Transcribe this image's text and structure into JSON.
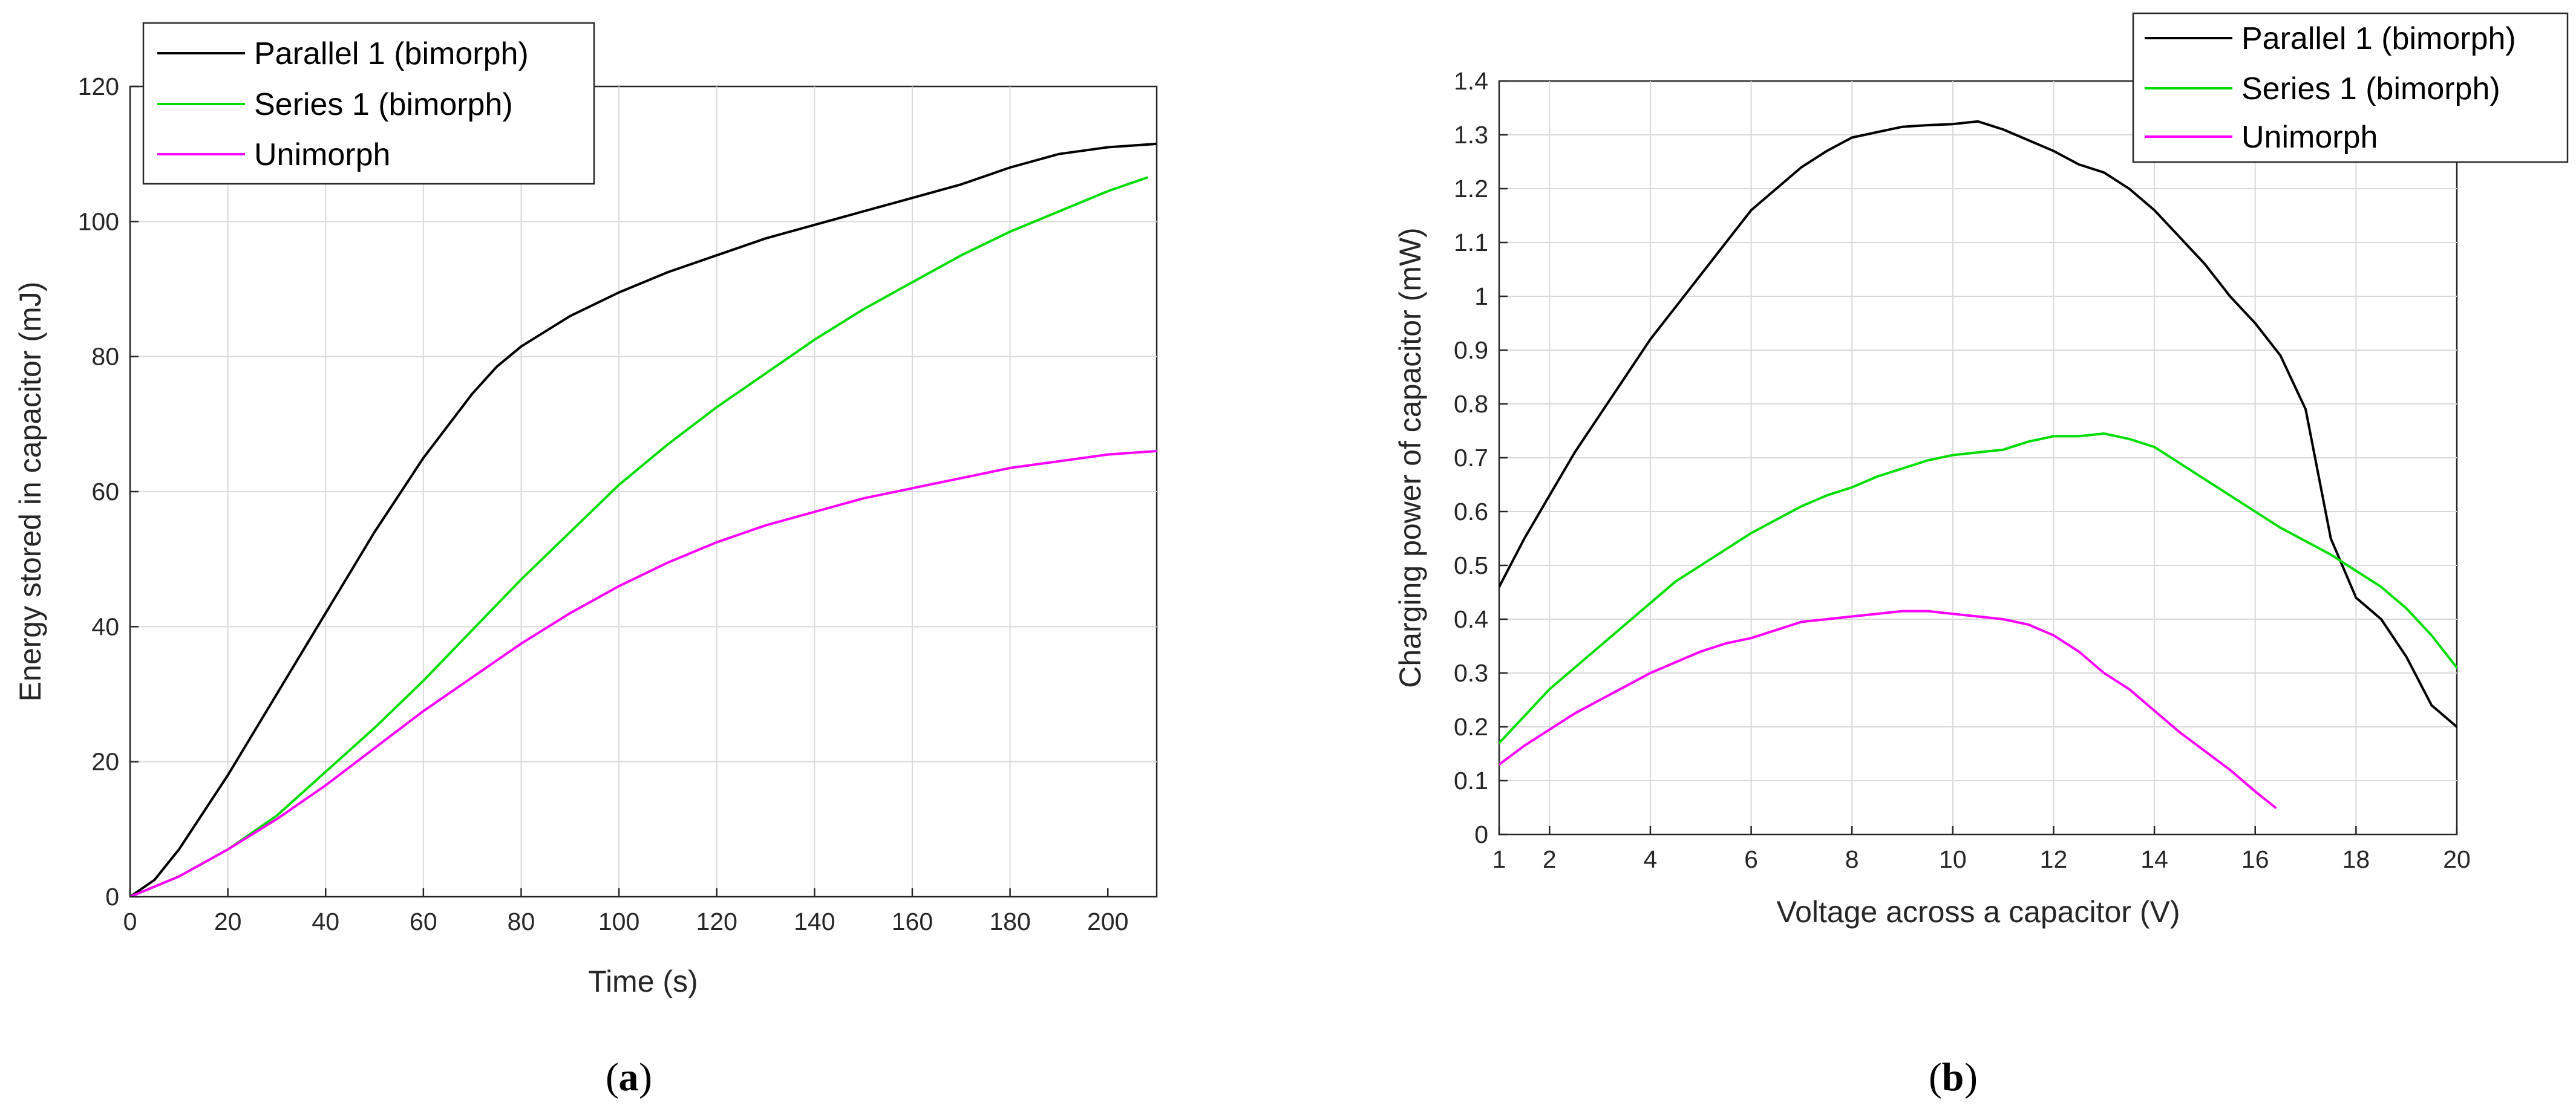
{
  "chart_data": [
    {
      "type": "line",
      "panel_label": "a",
      "xlabel": "Time (s)",
      "ylabel": "Energy stored in capacitor (mJ)",
      "xlim": [
        0,
        210
      ],
      "ylim": [
        0,
        120
      ],
      "xticks": [
        "0",
        "20",
        "40",
        "60",
        "80",
        "100",
        "120",
        "140",
        "160",
        "180",
        "200"
      ],
      "yticks": [
        "0",
        "20",
        "40",
        "60",
        "80",
        "100",
        "120"
      ],
      "grid": true,
      "legend_position": "top-left",
      "series": [
        {
          "name": "Parallel 1 (bimorph)",
          "color": "#000000",
          "x": [
            0,
            5,
            10,
            20,
            30,
            40,
            50,
            60,
            70,
            75,
            80,
            90,
            100,
            110,
            120,
            130,
            140,
            150,
            160,
            170,
            180,
            190,
            200,
            210
          ],
          "y": [
            0,
            2.5,
            7,
            18,
            30,
            42,
            54,
            65,
            74.5,
            78.5,
            81.5,
            86,
            89.5,
            92.5,
            95,
            97.5,
            99.5,
            101.5,
            103.5,
            105.5,
            108,
            110,
            111,
            111.5
          ]
        },
        {
          "name": "Series 1 (bimorph)",
          "color": "#00dd00",
          "x": [
            0,
            10,
            20,
            30,
            40,
            50,
            60,
            70,
            80,
            90,
            100,
            110,
            120,
            130,
            140,
            150,
            160,
            170,
            180,
            190,
            200,
            208
          ],
          "y": [
            0,
            3,
            7,
            12,
            18.5,
            25,
            32,
            39.5,
            47,
            54,
            61,
            67,
            72.5,
            77.5,
            82.5,
            87,
            91,
            95,
            98.5,
            101.5,
            104.5,
            106.5
          ]
        },
        {
          "name": "Unimorph",
          "color": "#ff00ff",
          "x": [
            0,
            10,
            20,
            30,
            40,
            50,
            60,
            70,
            80,
            90,
            100,
            110,
            120,
            130,
            140,
            150,
            160,
            170,
            180,
            190,
            200,
            210
          ],
          "y": [
            0,
            3,
            7,
            11.5,
            16.5,
            22,
            27.5,
            32.5,
            37.5,
            42,
            46,
            49.5,
            52.5,
            55,
            57,
            59,
            60.5,
            62,
            63.5,
            64.5,
            65.5,
            66
          ]
        }
      ]
    },
    {
      "type": "line",
      "panel_label": "b",
      "xlabel": "Voltage across a capacitor (V)",
      "ylabel": "Charging power of capacitor (mW)",
      "xlim": [
        1,
        20
      ],
      "ylim": [
        0,
        1.4
      ],
      "xticks": [
        "1",
        "2",
        "4",
        "6",
        "8",
        "10",
        "12",
        "14",
        "16",
        "18",
        "20"
      ],
      "yticks": [
        "0",
        "0.1",
        "0.2",
        "0.3",
        "0.4",
        "0.5",
        "0.6",
        "0.7",
        "0.8",
        "0.9",
        "1",
        "1.1",
        "1.2",
        "1.3",
        "1.4"
      ],
      "grid": true,
      "legend_position": "top-right",
      "series": [
        {
          "name": "Parallel 1 (bimorph)",
          "color": "#000000",
          "x": [
            1,
            1.5,
            2,
            2.5,
            3,
            3.5,
            4,
            4.5,
            5,
            5.5,
            6,
            6.5,
            7,
            7.5,
            8,
            8.5,
            9,
            9.5,
            10,
            10.5,
            11,
            11.5,
            12,
            12.5,
            13,
            13.5,
            14,
            14.5,
            15,
            15.5,
            16,
            16.5,
            17,
            17.25,
            17.5,
            18,
            18.5,
            19,
            19.5,
            20
          ],
          "y": [
            0.46,
            0.55,
            0.63,
            0.71,
            0.78,
            0.85,
            0.92,
            0.98,
            1.04,
            1.1,
            1.16,
            1.2,
            1.24,
            1.27,
            1.295,
            1.305,
            1.315,
            1.318,
            1.32,
            1.325,
            1.31,
            1.29,
            1.27,
            1.245,
            1.23,
            1.2,
            1.16,
            1.11,
            1.06,
            1.0,
            0.95,
            0.89,
            0.79,
            0.67,
            0.55,
            0.44,
            0.4,
            0.33,
            0.24,
            0.2
          ]
        },
        {
          "name": "Series 1 (bimorph)",
          "color": "#00dd00",
          "x": [
            1,
            1.5,
            2,
            2.5,
            3,
            3.5,
            4,
            4.5,
            5,
            5.5,
            6,
            6.5,
            7,
            7.5,
            8,
            8.5,
            9,
            9.5,
            10,
            10.5,
            11,
            11.5,
            12,
            12.5,
            13,
            13.5,
            14,
            14.5,
            15,
            15.5,
            16,
            16.5,
            17,
            17.5,
            18,
            18.5,
            19,
            19.5,
            20
          ],
          "y": [
            0.17,
            0.22,
            0.27,
            0.31,
            0.35,
            0.39,
            0.43,
            0.47,
            0.5,
            0.53,
            0.56,
            0.585,
            0.61,
            0.63,
            0.645,
            0.665,
            0.68,
            0.695,
            0.705,
            0.71,
            0.715,
            0.73,
            0.74,
            0.74,
            0.745,
            0.735,
            0.72,
            0.69,
            0.66,
            0.63,
            0.6,
            0.57,
            0.545,
            0.52,
            0.49,
            0.46,
            0.42,
            0.37,
            0.31
          ]
        },
        {
          "name": "Unimorph",
          "color": "#ff00ff",
          "x": [
            1,
            1.5,
            2,
            2.5,
            3,
            3.5,
            4,
            4.5,
            5,
            5.5,
            6,
            6.5,
            7,
            7.5,
            8,
            8.5,
            9,
            9.5,
            10,
            10.5,
            11,
            11.5,
            12,
            12.5,
            13,
            13.5,
            14,
            14.5,
            15,
            15.5,
            16,
            16.4
          ],
          "y": [
            0.13,
            0.165,
            0.195,
            0.225,
            0.25,
            0.275,
            0.3,
            0.32,
            0.34,
            0.355,
            0.365,
            0.38,
            0.395,
            0.4,
            0.405,
            0.41,
            0.415,
            0.415,
            0.41,
            0.405,
            0.4,
            0.39,
            0.37,
            0.34,
            0.3,
            0.27,
            0.23,
            0.19,
            0.155,
            0.12,
            0.08,
            0.05
          ]
        }
      ]
    }
  ]
}
